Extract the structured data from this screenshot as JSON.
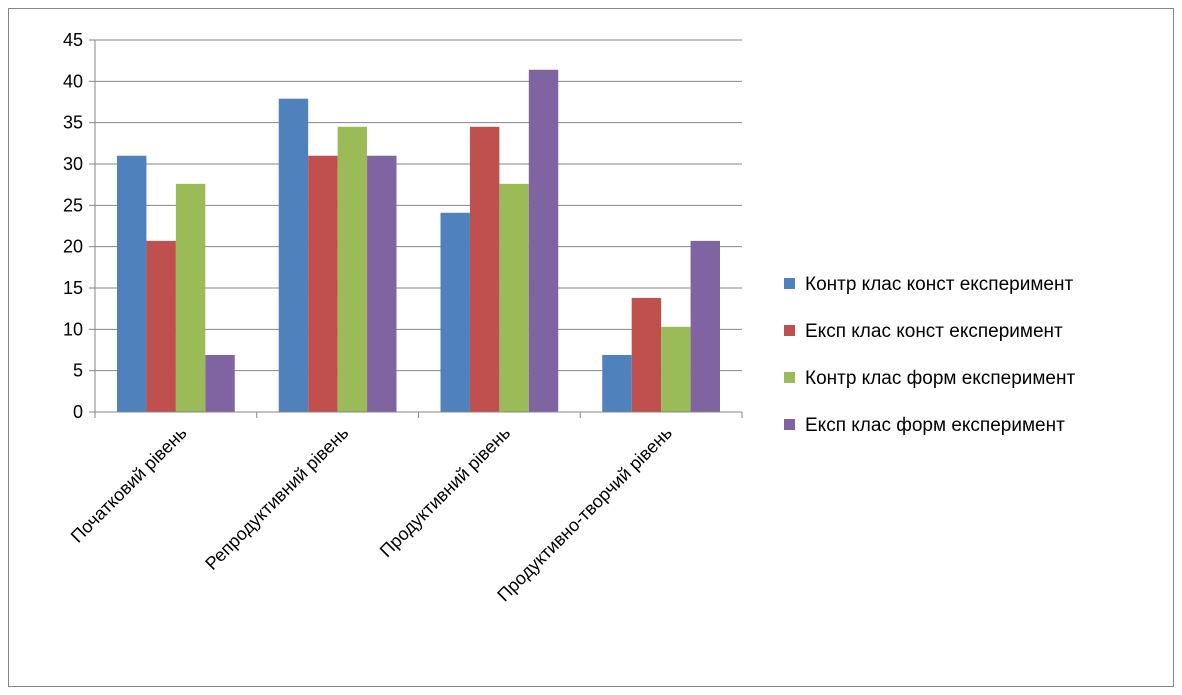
{
  "chart_data": {
    "type": "bar",
    "categories": [
      "Початковий рівень",
      "Репродуктивний рівень",
      "Продуктивний рівень",
      "Продуктивно-творчий рівень"
    ],
    "series": [
      {
        "name": "Контр клас конст експеримент",
        "color": "#4F81BD",
        "values": [
          31.0,
          37.9,
          24.1,
          6.9
        ]
      },
      {
        "name": "Експ клас конст експеримент",
        "color": "#C0504D",
        "values": [
          20.7,
          31.0,
          34.5,
          13.8
        ]
      },
      {
        "name": "Контр клас форм експеримент",
        "color": "#9BBB59",
        "values": [
          27.6,
          34.5,
          27.6,
          10.3
        ]
      },
      {
        "name": "Експ клас форм експеримент",
        "color": "#8064A2",
        "values": [
          6.9,
          31.0,
          41.4,
          20.7
        ]
      }
    ],
    "ylim": [
      0,
      45
    ],
    "ytick_step": 5,
    "yticks": [
      "0",
      "5",
      "10",
      "15",
      "20",
      "25",
      "30",
      "35",
      "40",
      "45"
    ],
    "grid": true,
    "legend": "right",
    "title": "",
    "xlabel": "",
    "ylabel": ""
  }
}
